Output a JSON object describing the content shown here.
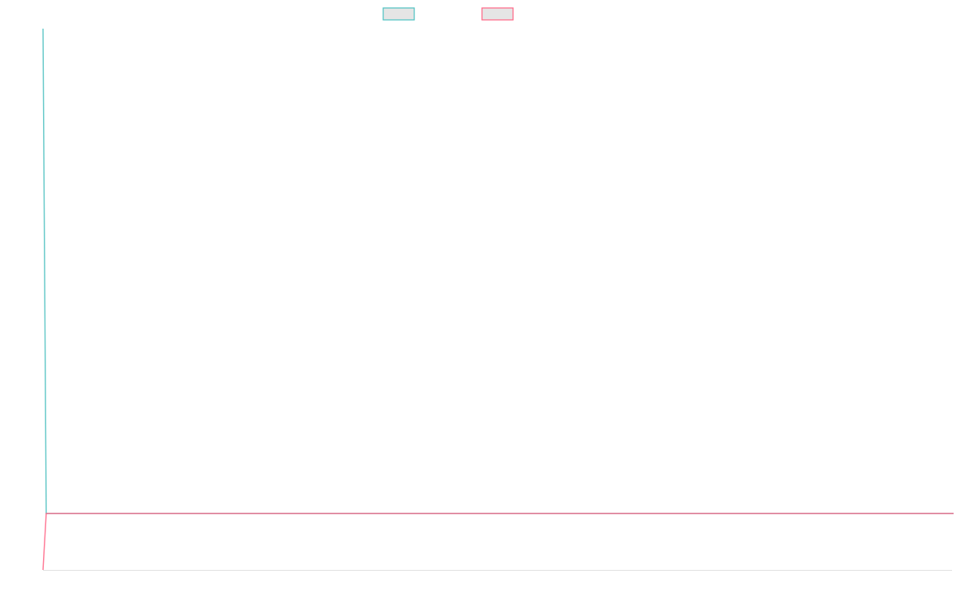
{
  "chart_data": {
    "type": "line",
    "title": "",
    "xlabel": "",
    "ylabel": "",
    "x": [
      0,
      1,
      570
    ],
    "xlim": [
      0,
      570
    ],
    "ylim": [
      -1,
      8.6
    ],
    "grid": false,
    "legend": "top-center",
    "series": [
      {
        "values": [
          8.6,
          0,
          0
        ],
        "color": "#4bc0c0"
      },
      {
        "values": [
          -1,
          0,
          0
        ],
        "color": "#ff6384"
      }
    ],
    "legend_box_fill": "#e5e5e5",
    "baseline_color": "#e0e0e0"
  }
}
